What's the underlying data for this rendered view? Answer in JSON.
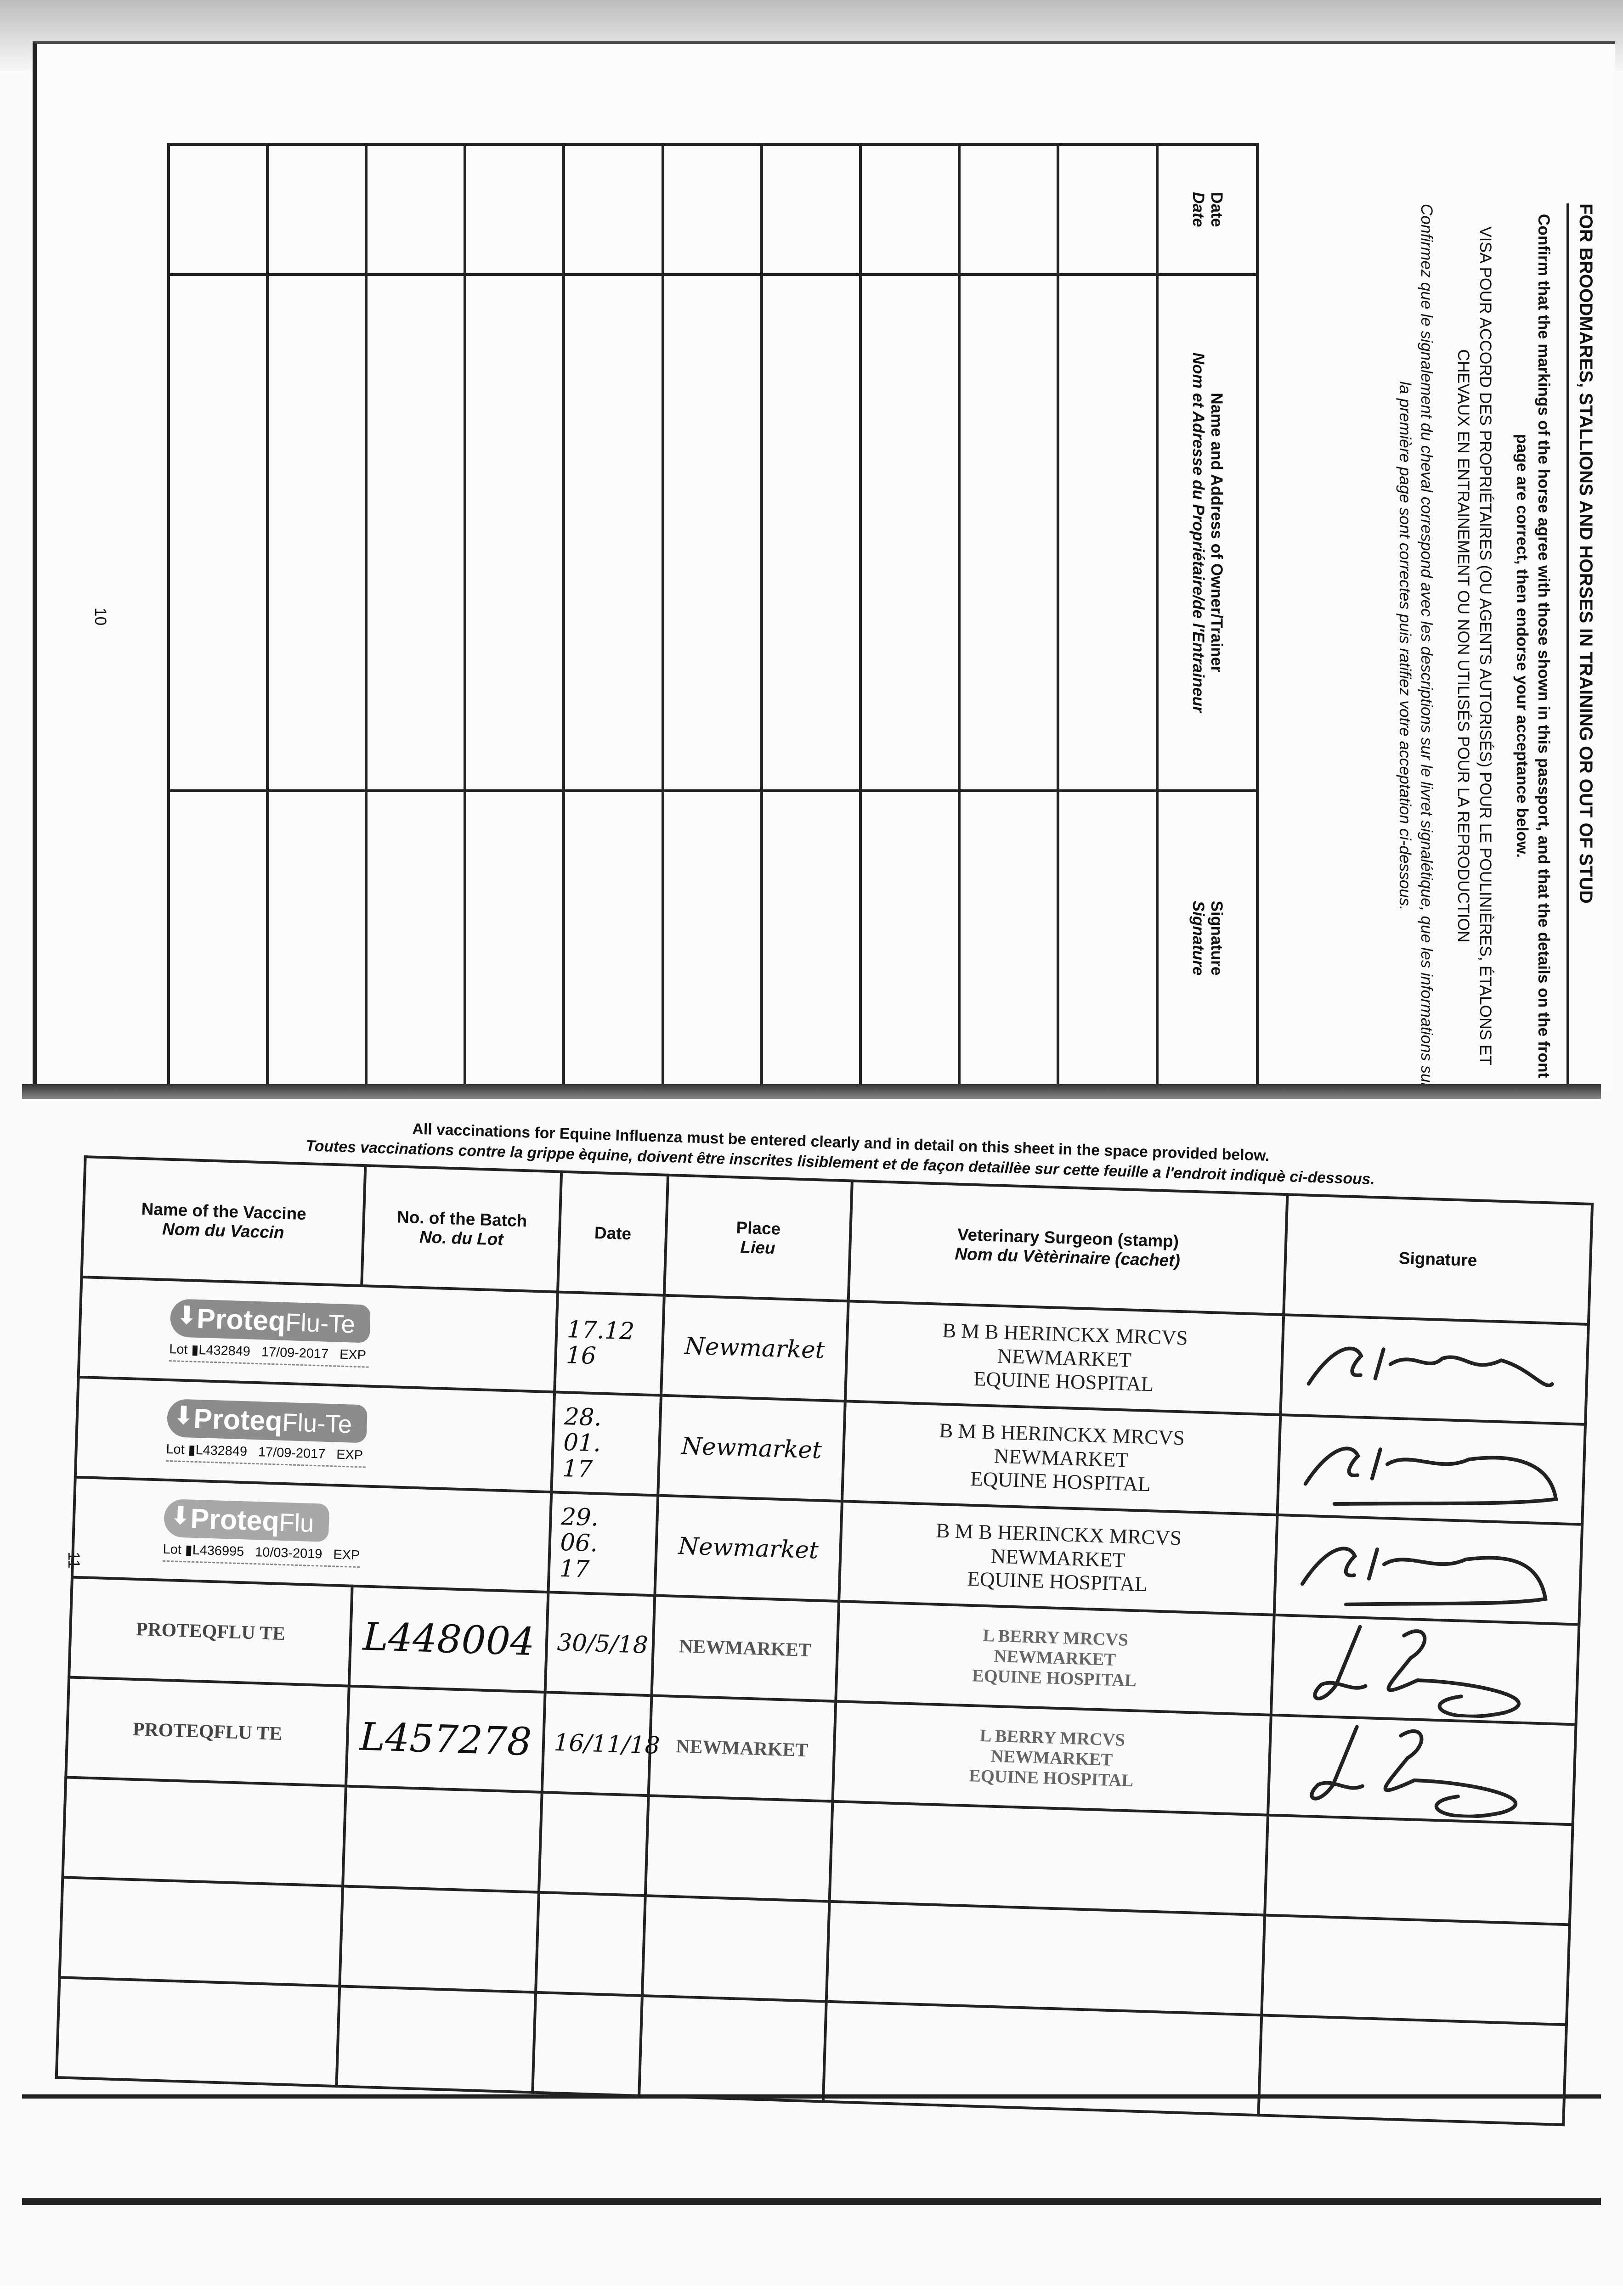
{
  "page_10": {
    "number": "10",
    "title": "FOR BROODMARES, STALLIONS AND HORSES IN TRAINING OR OUT OF STUD",
    "instruction_en": "Confirm that the markings of the horse agree with those shown in this passport, and that the details on the front page are correct, then endorse your acceptance below.",
    "title_fr": "VISA POUR ACCORD DES PROPRIÉTAIRES (OU AGENTS AUTORISÉS) POUR LE POULINIÈRES, ÉTALONS ET CHEVAUX EN ENTRAINEMENT OU NON UTILISÉS POUR LA REPRODUCTION",
    "instruction_fr": "Confirmez que le signalement du cheval correspond avec les descriptions sur le livret signalétique, que les informations sur la première page sont correctes puis ratifiez votre acceptation ci-dessous.",
    "table": {
      "headers": [
        {
          "en": "Date",
          "fr": "Date"
        },
        {
          "en": "Name and Address of Owner/Trainer",
          "fr": "Nom et Adresse du Propriétaire/de l'Entraineur"
        },
        {
          "en": "Signature",
          "fr": "Signature"
        }
      ],
      "empty_rows": 10
    }
  },
  "page_11": {
    "number": "11",
    "note_en": "All vaccinations for Equine Influenza must be entered clearly and in detail on this sheet in the space provided below.",
    "note_fr": "Toutes vaccinations contre la grippe èquine, doivent être inscrites lisiblement et de façon detaillèe sur cette feuille a l'endroit indiquè ci-dessous.",
    "headers": [
      {
        "en": "Name of the Vaccine",
        "fr": "Nom du Vaccin"
      },
      {
        "en": "No. of the Batch",
        "fr": "No. du Lot"
      },
      {
        "en": "Date",
        "fr": ""
      },
      {
        "en": "Place",
        "fr": "Lieu"
      },
      {
        "en": "Veterinary Surgeon (stamp)",
        "fr": "Nom du Vètèrinaire (cachet)"
      },
      {
        "en": "Signature",
        "fr": ""
      }
    ],
    "rows": [
      {
        "label": {
          "brand": "Proteq",
          "product": "Flu-Te",
          "lot_prefix": "Lot",
          "lot": "L432849",
          "expiry": "17/09-2017",
          "exp_label": "EXP"
        },
        "batch": "",
        "date": "17.12\n16",
        "place": "Newmarket",
        "vet": [
          "B M B HERINCKX MRCVS",
          "NEWMARKET",
          "EQUINE HOSPITAL"
        ]
      },
      {
        "label": {
          "brand": "Proteq",
          "product": "Flu-Te",
          "lot_prefix": "Lot",
          "lot": "L432849",
          "expiry": "17/09-2017",
          "exp_label": "EXP"
        },
        "batch": "",
        "date": "28.\n01.\n17",
        "place": "Newmarket",
        "vet": [
          "B M B HERINCKX MRCVS",
          "NEWMARKET",
          "EQUINE HOSPITAL"
        ]
      },
      {
        "label": {
          "brand": "Proteq",
          "product": "Flu",
          "lot_prefix": "Lot",
          "lot": "L436995",
          "expiry": "10/03-2019",
          "exp_label": "EXP"
        },
        "batch": "",
        "date": "29.\n06.\n17",
        "place": "Newmarket",
        "vet": [
          "B M B HERINCKX MRCVS",
          "NEWMARKET",
          "EQUINE HOSPITAL"
        ]
      },
      {
        "name": "PROTEQFLU TE",
        "batch": "L448004",
        "date": "30/5/18",
        "place": "NEWMARKET",
        "vet": [
          "L BERRY MRCVS",
          "NEWMARKET",
          "EQUINE HOSPITAL"
        ]
      },
      {
        "name": "PROTEQFLU TE",
        "batch": "L457278",
        "date": "16/11/18",
        "place": "NEWMARKET",
        "vet": [
          "L BERRY MRCVS",
          "NEWMARKET",
          "EQUINE HOSPITAL"
        ]
      }
    ],
    "empty_rows": 3
  },
  "colors": {
    "ink": "#111111",
    "label_grey": "#8c8c8c",
    "stamp_faded": "#666666"
  }
}
